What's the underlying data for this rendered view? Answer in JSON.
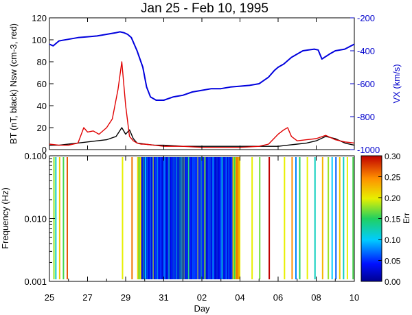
{
  "title": "Jan 25 - Feb 10, 1995",
  "colors": {
    "vx": "#0000dd",
    "bt": "#000000",
    "nsw": "#e00000",
    "axis_right": "#0000cc"
  },
  "chart_data": [
    {
      "type": "line",
      "title": "Jan 25 - Feb 10, 1995",
      "xlabel": "Day",
      "x_ticks": [
        "25",
        "27",
        "29",
        "31",
        "02",
        "04",
        "06",
        "08",
        "10"
      ],
      "xlim": [
        0,
        16
      ],
      "ylabel_left": "BT (nT, black) Nsw (cm-3, red)",
      "ylim_left": [
        0,
        120
      ],
      "yticks_left": [
        "0",
        "20",
        "40",
        "60",
        "80",
        "100",
        "120"
      ],
      "ylabel_right": "VX (km/s)",
      "ylim_right": [
        -1000,
        -200
      ],
      "yticks_right": [
        "-1000",
        "-800",
        "-600",
        "-400",
        "-200"
      ],
      "series": [
        {
          "color": "#0000dd",
          "axis": "right",
          "x": [
            0,
            0.2,
            0.5,
            1,
            1.5,
            2,
            2.5,
            3,
            3.5,
            3.7,
            3.9,
            4.1,
            4.3,
            4.6,
            4.9,
            5.1,
            5.3,
            5.6,
            6,
            6.5,
            7,
            7.5,
            8,
            8.5,
            9,
            9.5,
            10,
            10.5,
            11,
            11.5,
            11.8,
            12,
            12.3,
            12.7,
            13,
            13.3,
            13.6,
            13.9,
            14.1,
            14.3,
            14.7,
            15,
            15.5,
            16
          ],
          "y": [
            -360,
            -370,
            -340,
            -330,
            -320,
            -315,
            -310,
            -300,
            -290,
            -285,
            -290,
            -300,
            -320,
            -400,
            -500,
            -620,
            -680,
            -700,
            -700,
            -680,
            -670,
            -650,
            -640,
            -630,
            -630,
            -620,
            -615,
            -610,
            -600,
            -560,
            -520,
            -500,
            -480,
            -440,
            -420,
            -400,
            -395,
            -390,
            -395,
            -450,
            -420,
            -400,
            -390,
            -360
          ]
        },
        {
          "color": "#000000",
          "axis": "left",
          "x": [
            0,
            0.5,
            1,
            1.5,
            2,
            2.5,
            3,
            3.5,
            3.8,
            4,
            4.2,
            4.4,
            4.6,
            5,
            5.5,
            6,
            7,
            8,
            9,
            10,
            11,
            12,
            12.5,
            13,
            13.5,
            14,
            14.5,
            15,
            15.5,
            16
          ],
          "y": [
            4,
            4,
            5,
            6,
            7,
            8,
            9,
            12,
            20,
            14,
            18,
            10,
            6,
            5,
            4,
            4,
            3,
            3,
            3,
            3,
            3,
            3,
            4,
            5,
            6,
            8,
            12,
            10,
            6,
            4
          ]
        },
        {
          "color": "#e00000",
          "axis": "left",
          "x": [
            0,
            0.5,
            1,
            1.5,
            1.8,
            2,
            2.3,
            2.6,
            3,
            3.3,
            3.6,
            3.8,
            4,
            4.2,
            4.4,
            4.6,
            4.8,
            5,
            5.5,
            6,
            7,
            8,
            9,
            10,
            11,
            11.5,
            12,
            12.3,
            12.5,
            12.7,
            13,
            13.5,
            14,
            14.5,
            15,
            15.5,
            16
          ],
          "y": [
            5,
            4,
            4,
            6,
            20,
            16,
            17,
            14,
            20,
            28,
            55,
            80,
            40,
            12,
            8,
            6,
            5,
            5,
            4,
            3,
            3,
            2,
            2,
            2,
            3,
            5,
            14,
            18,
            20,
            12,
            8,
            9,
            10,
            13,
            9,
            7,
            6
          ]
        }
      ]
    },
    {
      "type": "heatmap",
      "xlabel": "Day",
      "x_ticks": [
        "25",
        "27",
        "29",
        "31",
        "02",
        "04",
        "06",
        "08",
        "10"
      ],
      "xlim": [
        0,
        16
      ],
      "ylabel": "Frequency (Hz)",
      "yscale": "log",
      "yticks": [
        "0.001",
        "0.010",
        "0.100"
      ],
      "ylim": [
        0.001,
        0.1
      ],
      "colorbar_label": "Err",
      "colorbar_ticks": [
        "0.00",
        "0.05",
        "0.10",
        "0.15",
        "0.20",
        "0.25",
        "0.30"
      ],
      "colorbar_range": [
        0,
        0.3
      ],
      "colormap": "rainbow (blue to red)",
      "dense_interval_days": [
        4.6,
        10.0
      ],
      "sparse_interval_days_x": [
        0.2,
        0.3,
        0.5,
        0.7,
        0.9,
        3.8,
        4.3,
        5.0,
        10.6,
        11.0,
        11.5,
        12.3,
        12.7,
        12.9,
        13.1,
        13.5,
        13.9,
        14.3,
        14.6,
        14.8,
        15.0,
        15.2,
        15.4,
        15.6,
        15.9
      ],
      "sparse_interval_values": [
        0.18,
        0.12,
        0.22,
        0.16,
        0.27,
        0.2,
        0.26,
        0.1,
        0.2,
        0.17,
        0.3,
        0.2,
        0.25,
        0.08,
        0.15,
        0.2,
        0.12,
        0.23,
        0.18,
        0.1,
        0.07,
        0.22,
        0.12,
        0.2,
        0.16
      ]
    }
  ]
}
